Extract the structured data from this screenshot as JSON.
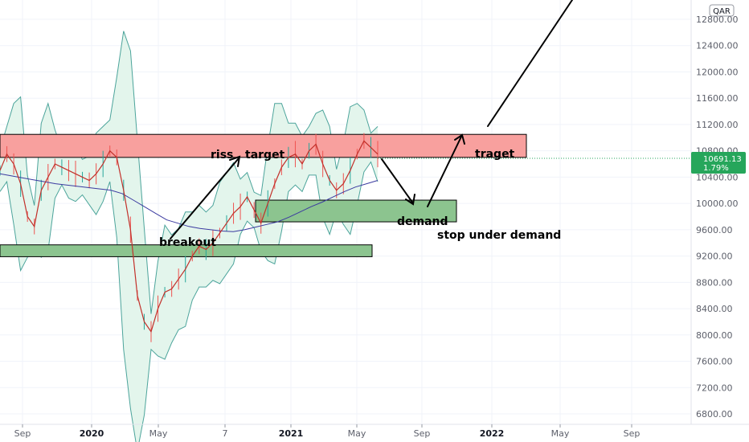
{
  "currency": "QAR",
  "price_label": {
    "value": "10691.13",
    "change": "1.79%"
  },
  "colors": {
    "resistance_zone": "#f8a09e",
    "demand_zone": "#8cc48f",
    "band_fill": "#e3f5ec",
    "band_line": "#4ca49b",
    "price_line": "#c2302a",
    "ma_line": "#3b3aa0",
    "price_label_bg": "#26a65b"
  },
  "annotations": {
    "riss": "riss",
    "target": "target",
    "traget": "traget",
    "demand": "demand",
    "stop": "stop under demand",
    "breakout": "breakout"
  },
  "chart_data": {
    "type": "line",
    "title": "",
    "xlabel": "",
    "ylabel": "",
    "ylim": [
      6700,
      13050
    ],
    "y_axis_ticks": [
      "12800.00",
      "12400.00",
      "12000.00",
      "11600.00",
      "11200.00",
      "10800.00",
      "10400.00",
      "10000.00",
      "9600.00",
      "9200.00",
      "8800.00",
      "8400.00",
      "8000.00",
      "7600.00",
      "7200.00",
      "6800.00"
    ],
    "x_axis_ticks": [
      {
        "label": "Sep",
        "bold": false
      },
      {
        "label": "2020",
        "bold": true
      },
      {
        "label": "May",
        "bold": false
      },
      {
        "label": "7",
        "bold": false
      },
      {
        "label": "2021",
        "bold": true
      },
      {
        "label": "May",
        "bold": false
      },
      {
        "label": "Sep",
        "bold": false
      },
      {
        "label": "2022",
        "bold": true
      },
      {
        "label": "May",
        "bold": false
      },
      {
        "label": "Sep",
        "bold": false
      }
    ],
    "last_value": 10691.13,
    "series": [
      {
        "values": [
          10500,
          10750,
          10600,
          10300,
          9800,
          9650,
          10200,
          10400,
          10600,
          10550,
          10500,
          10450,
          10400,
          10350,
          10450,
          10600,
          10800,
          10700,
          10200,
          9600,
          8600,
          8200,
          8050,
          8400,
          8650,
          8700,
          8850,
          9000,
          9200,
          9350,
          9300,
          9400,
          9550,
          9700,
          9850,
          9950,
          10100,
          9900,
          9700,
          10000,
          10300,
          10550,
          10700,
          10750,
          10600,
          10800,
          10900,
          10600,
          10350,
          10200,
          10300,
          10500,
          10750,
          10950,
          10850,
          10750
        ]
      },
      {
        "values": [
          10450,
          10420,
          10390,
          10360,
          10330,
          10300,
          10280,
          10260,
          10240,
          10220,
          10200,
          10150,
          10050,
          9950,
          9850,
          9750,
          9700,
          9650,
          9620,
          9600,
          9580,
          9570,
          9600,
          9640,
          9680,
          9720,
          9790,
          9870,
          9950,
          10020,
          10100,
          10180,
          10250,
          10300,
          10350
        ]
      }
    ],
    "zones": [
      {
        "type": "resistance",
        "label": "traget",
        "price_low": 10700,
        "price_high": 11050
      },
      {
        "type": "demand",
        "label": "demand",
        "price_low": 9720,
        "price_high": 10050
      },
      {
        "type": "breakout",
        "label": "breakout",
        "price_low": 9190,
        "price_high": 9370
      }
    ]
  }
}
